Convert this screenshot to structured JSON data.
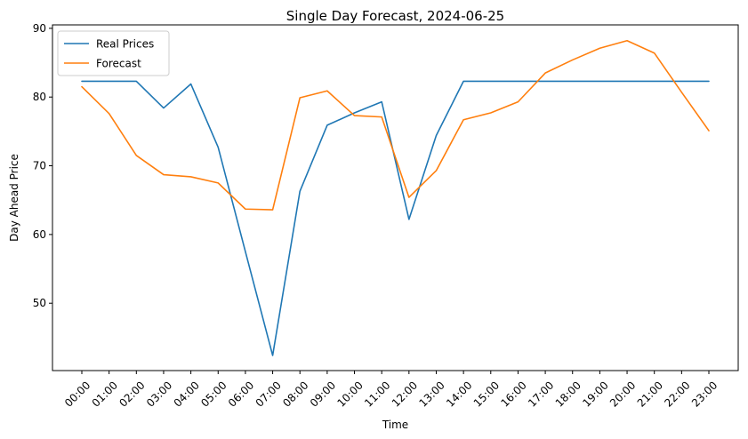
{
  "chart_data": {
    "type": "line",
    "title": "Single Day Forecast, 2024-06-25",
    "xlabel": "Time",
    "ylabel": "Day Ahead Price",
    "categories": [
      "00:00",
      "01:00",
      "02:00",
      "03:00",
      "04:00",
      "05:00",
      "06:00",
      "07:00",
      "08:00",
      "09:00",
      "10:00",
      "11:00",
      "12:00",
      "13:00",
      "14:00",
      "15:00",
      "16:00",
      "17:00",
      "18:00",
      "19:00",
      "20:00",
      "21:00",
      "22:00",
      "23:00"
    ],
    "yticks": [
      50,
      60,
      70,
      80,
      90
    ],
    "ylim": [
      40.2,
      90.5
    ],
    "grid": false,
    "legend_position": "upper left",
    "series": [
      {
        "name": "Real Prices",
        "color": "#1f77b4",
        "values": [
          82.3,
          82.3,
          82.3,
          78.4,
          81.9,
          72.7,
          57.5,
          42.4,
          66.3,
          75.9,
          77.7,
          79.3,
          62.2,
          74.4,
          82.3,
          82.3,
          82.3,
          82.3,
          82.3,
          82.3,
          82.3,
          82.3,
          82.3,
          82.3
        ]
      },
      {
        "name": "Forecast",
        "color": "#ff7f0e",
        "values": [
          81.5,
          77.6,
          71.5,
          68.7,
          68.4,
          67.5,
          63.7,
          63.6,
          79.9,
          80.9,
          77.3,
          77.1,
          65.4,
          69.3,
          76.7,
          77.7,
          79.3,
          83.5,
          85.4,
          87.1,
          88.2,
          86.4,
          80.7,
          75.1
        ]
      }
    ]
  }
}
